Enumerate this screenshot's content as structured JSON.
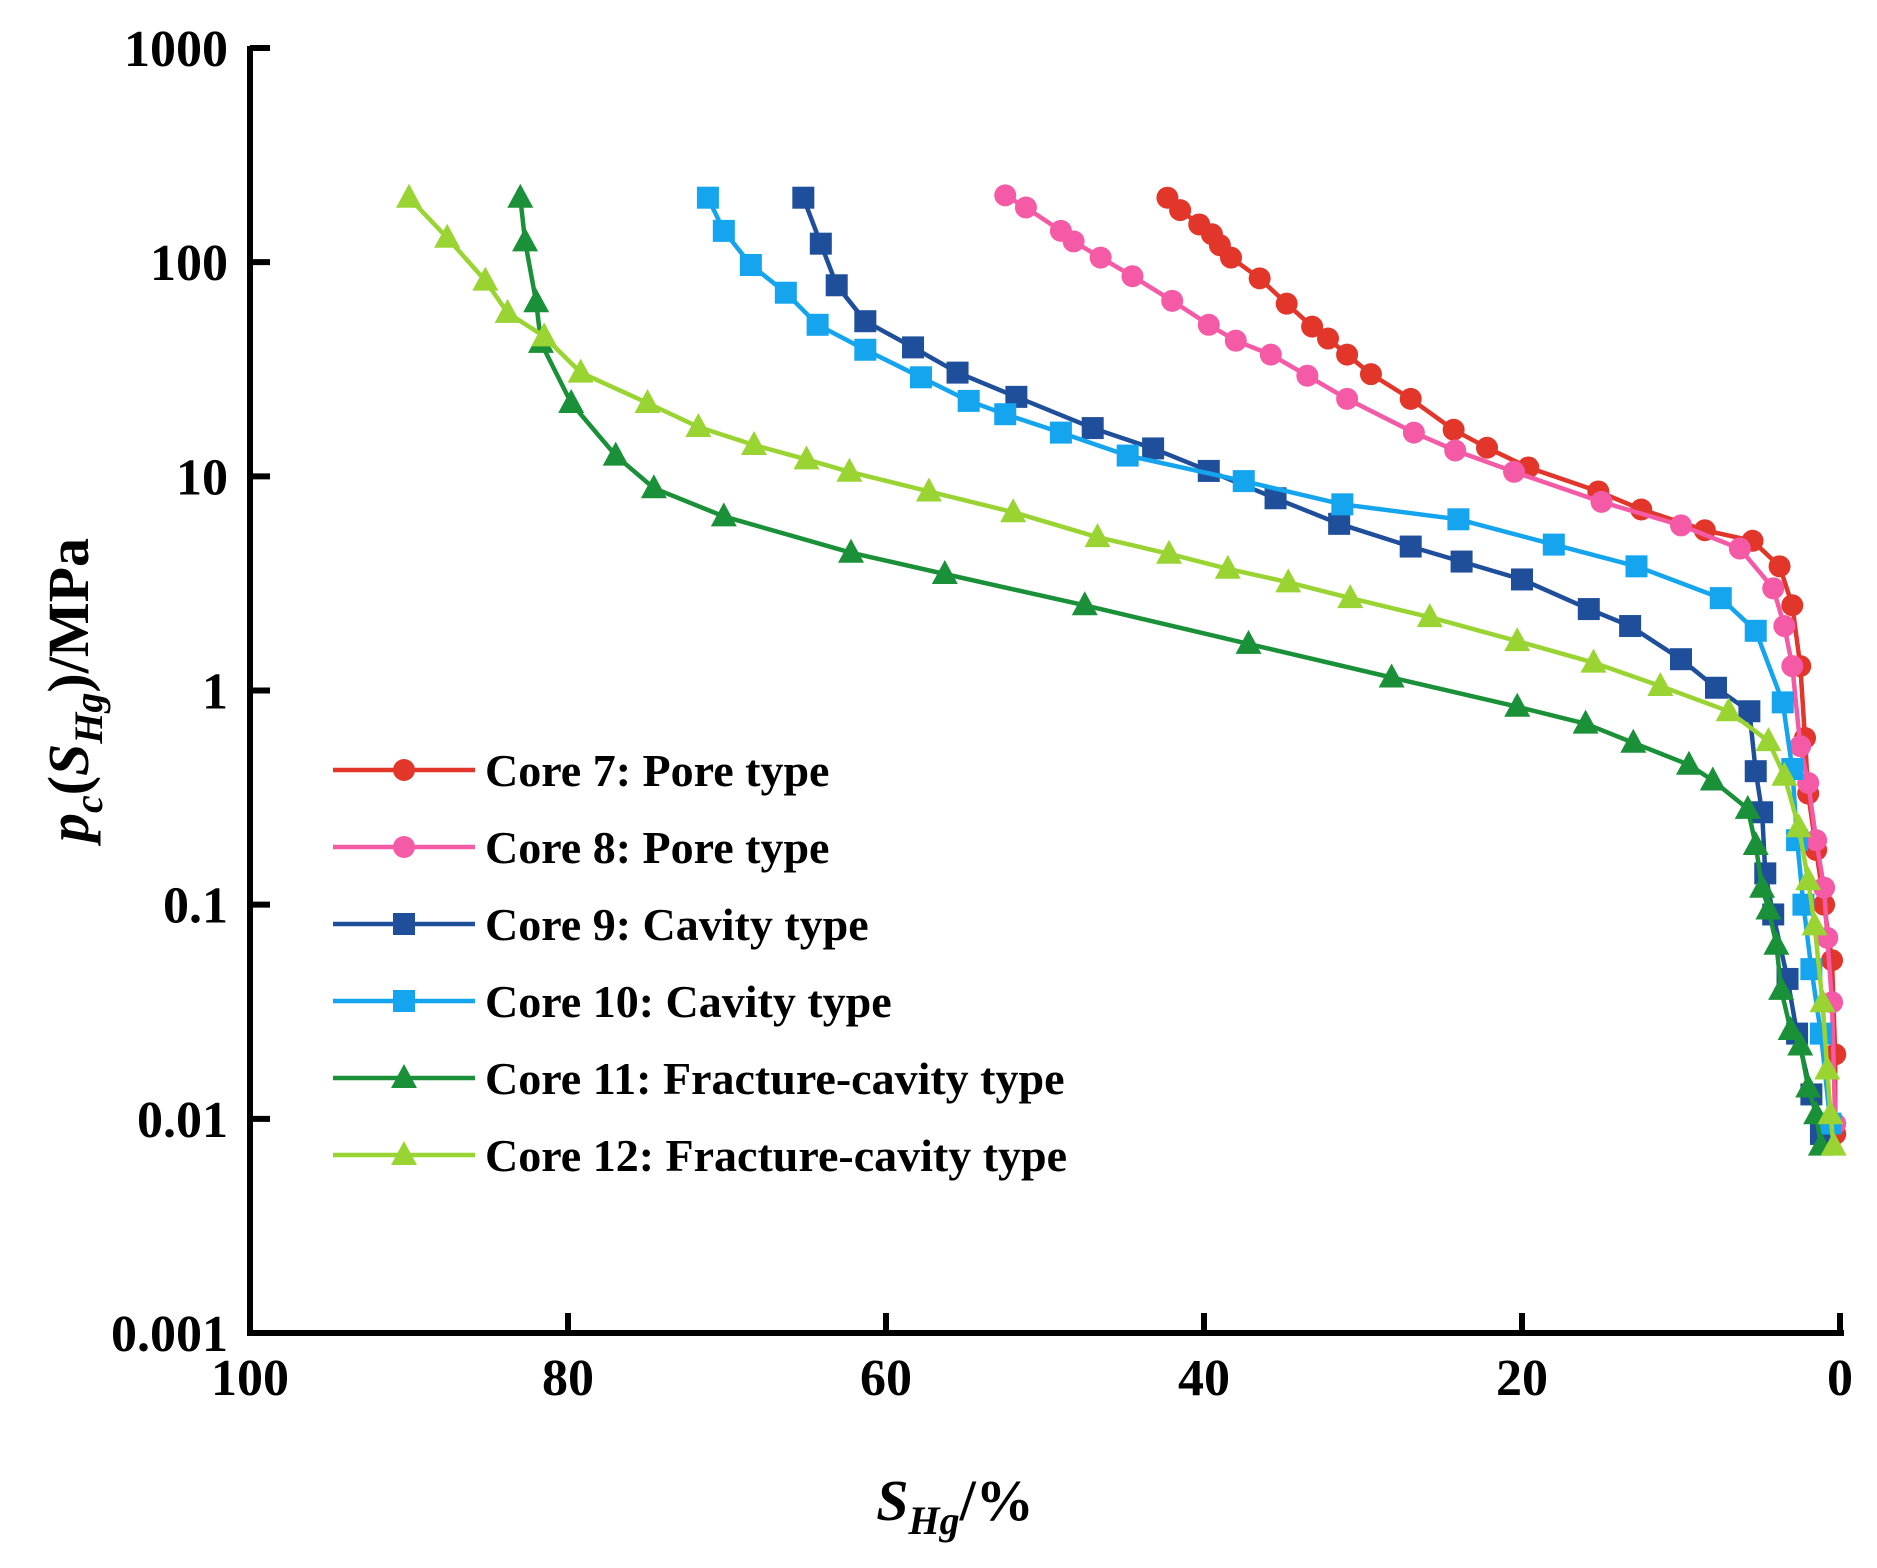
{
  "chart_data": {
    "type": "line",
    "xlabel": {
      "main": "S",
      "sub": "Hg",
      "suffix": "/%"
    },
    "ylabel": {
      "p": "p",
      "c": "c",
      "open": "(",
      "s": "S",
      "hg": "Hg",
      "close": ")",
      "unit": "/MPa"
    },
    "x_reversed": true,
    "xlim": [
      100,
      0
    ],
    "ylim": [
      0.001,
      1000
    ],
    "yscale": "log",
    "x_ticks": [
      {
        "value": 100,
        "label": "100"
      },
      {
        "value": 80,
        "label": "80"
      },
      {
        "value": 60,
        "label": "60"
      },
      {
        "value": 40,
        "label": "40"
      },
      {
        "value": 20,
        "label": "20"
      },
      {
        "value": 0,
        "label": "0"
      }
    ],
    "y_ticks": [
      {
        "value": 1000,
        "label": "1000"
      },
      {
        "value": 100,
        "label": "100"
      },
      {
        "value": 10,
        "label": "10"
      },
      {
        "value": 1,
        "label": "1"
      },
      {
        "value": 0.1,
        "label": "0.1"
      },
      {
        "value": 0.01,
        "label": "0.01"
      },
      {
        "value": 0.001,
        "label": "0.001"
      }
    ],
    "legend_position": "lower-left",
    "series": [
      {
        "name": "Core 7: Pore type",
        "color": "#e2362b",
        "marker": "circle",
        "points": [
          [
            42.3,
            200
          ],
          [
            41.5,
            175
          ],
          [
            40.3,
            150
          ],
          [
            39.5,
            135
          ],
          [
            39.0,
            120
          ],
          [
            38.3,
            105
          ],
          [
            36.5,
            84
          ],
          [
            34.8,
            64
          ],
          [
            33.2,
            50
          ],
          [
            32.2,
            44
          ],
          [
            31.0,
            37
          ],
          [
            29.5,
            30
          ],
          [
            27,
            23
          ],
          [
            24.3,
            16.5
          ],
          [
            22.2,
            13.6
          ],
          [
            19.6,
            11
          ],
          [
            15.2,
            8.5
          ],
          [
            12.5,
            7
          ],
          [
            8.5,
            5.6
          ],
          [
            5.5,
            5
          ],
          [
            3.8,
            3.8
          ],
          [
            3.0,
            2.5
          ],
          [
            2.5,
            1.3
          ],
          [
            2.2,
            0.6
          ],
          [
            2.0,
            0.33
          ],
          [
            1.5,
            0.18
          ],
          [
            1.0,
            0.1
          ],
          [
            0.5,
            0.055
          ],
          [
            0.3,
            0.02
          ],
          [
            0.3,
            0.0085
          ]
        ]
      },
      {
        "name": "Core 8: Pore type",
        "color": "#f45aa6",
        "marker": "circle",
        "points": [
          [
            52.5,
            205
          ],
          [
            51.2,
            180
          ],
          [
            49,
            140
          ],
          [
            48.2,
            125
          ],
          [
            46.5,
            105
          ],
          [
            44.5,
            86
          ],
          [
            42,
            66
          ],
          [
            39.7,
            51
          ],
          [
            38,
            43
          ],
          [
            35.8,
            37
          ],
          [
            33.5,
            29.5
          ],
          [
            31,
            23
          ],
          [
            26.8,
            16
          ],
          [
            24.2,
            13.2
          ],
          [
            20.5,
            10.5
          ],
          [
            15.0,
            7.6
          ],
          [
            10,
            5.9
          ],
          [
            6.3,
            4.6
          ],
          [
            4.2,
            3
          ],
          [
            3.5,
            2
          ],
          [
            3.0,
            1.3
          ],
          [
            2.5,
            0.55
          ],
          [
            2.0,
            0.37
          ],
          [
            1.5,
            0.2
          ],
          [
            1.0,
            0.12
          ],
          [
            0.8,
            0.07
          ],
          [
            0.5,
            0.035
          ],
          [
            0.3,
            0.0095
          ]
        ]
      },
      {
        "name": "Core 9: Cavity type",
        "color": "#1f4f9b",
        "marker": "square",
        "points": [
          [
            65.2,
            200
          ],
          [
            64.1,
            122
          ],
          [
            63.1,
            78
          ],
          [
            61.3,
            53
          ],
          [
            58.3,
            40
          ],
          [
            55.5,
            30.5
          ],
          [
            51.8,
            23.5
          ],
          [
            47,
            16.8
          ],
          [
            43.2,
            13.5
          ],
          [
            39.7,
            10.6
          ],
          [
            35.5,
            7.9
          ],
          [
            31.5,
            6
          ],
          [
            27,
            4.7
          ],
          [
            23.8,
            4
          ],
          [
            20,
            3.3
          ],
          [
            15.8,
            2.4
          ],
          [
            13.2,
            2
          ],
          [
            10,
            1.4
          ],
          [
            7.8,
            1.03
          ],
          [
            5.7,
            0.8
          ],
          [
            5.3,
            0.42
          ],
          [
            4.9,
            0.27
          ],
          [
            4.7,
            0.14
          ],
          [
            4.2,
            0.09
          ],
          [
            3.3,
            0.045
          ],
          [
            2.7,
            0.025
          ],
          [
            1.8,
            0.013
          ],
          [
            1.2,
            0.0085
          ]
        ]
      },
      {
        "name": "Core 10: Cavity type",
        "color": "#14a5ee",
        "marker": "square",
        "points": [
          [
            71.2,
            200
          ],
          [
            70.2,
            140
          ],
          [
            68.5,
            97
          ],
          [
            66.3,
            72
          ],
          [
            64.3,
            51
          ],
          [
            61.3,
            39
          ],
          [
            57.8,
            29
          ],
          [
            54.8,
            22.5
          ],
          [
            52.5,
            19.5
          ],
          [
            49,
            16
          ],
          [
            44.8,
            12.5
          ],
          [
            37.5,
            9.5
          ],
          [
            31.3,
            7.4
          ],
          [
            24,
            6.3
          ],
          [
            18,
            4.8
          ],
          [
            12.8,
            3.8
          ],
          [
            7.5,
            2.7
          ],
          [
            5.3,
            1.9
          ],
          [
            3.6,
            0.88
          ],
          [
            3.0,
            0.43
          ],
          [
            2.7,
            0.2
          ],
          [
            2.3,
            0.1
          ],
          [
            1.8,
            0.05
          ],
          [
            1.2,
            0.025
          ],
          [
            0.6,
            0.0095
          ]
        ]
      },
      {
        "name": "Core 11: Fracture-cavity type",
        "color": "#1a9038",
        "marker": "triangle",
        "points": [
          [
            83,
            200
          ],
          [
            82.7,
            125
          ],
          [
            82,
            65
          ],
          [
            81.7,
            42
          ],
          [
            79.8,
            22
          ],
          [
            77,
            12.5
          ],
          [
            74.6,
            8.8
          ],
          [
            70.2,
            6.5
          ],
          [
            62.2,
            4.4
          ],
          [
            56.3,
            3.5
          ],
          [
            47.5,
            2.5
          ],
          [
            37.2,
            1.65
          ],
          [
            28.2,
            1.15
          ],
          [
            20.3,
            0.84
          ],
          [
            16,
            0.7
          ],
          [
            13,
            0.57
          ],
          [
            9.5,
            0.45
          ],
          [
            8,
            0.38
          ],
          [
            5.8,
            0.28
          ],
          [
            5.3,
            0.19
          ],
          [
            4.9,
            0.12
          ],
          [
            4.5,
            0.095
          ],
          [
            4.0,
            0.065
          ],
          [
            3.7,
            0.04
          ],
          [
            3.1,
            0.026
          ],
          [
            2.5,
            0.022
          ],
          [
            2.0,
            0.014
          ],
          [
            1.5,
            0.0105
          ],
          [
            1.2,
            0.0075
          ]
        ]
      },
      {
        "name": "Core 12: Fracture-cavity type",
        "color": "#99d432",
        "marker": "triangle",
        "points": [
          [
            90,
            200
          ],
          [
            87.6,
            130
          ],
          [
            85.2,
            82
          ],
          [
            83.8,
            58
          ],
          [
            81.5,
            45
          ],
          [
            79.2,
            30.5
          ],
          [
            75,
            22
          ],
          [
            71.8,
            17
          ],
          [
            68.3,
            14
          ],
          [
            65,
            12
          ],
          [
            62.3,
            10.5
          ],
          [
            57.3,
            8.5
          ],
          [
            52,
            6.8
          ],
          [
            46.7,
            5.2
          ],
          [
            42.2,
            4.35
          ],
          [
            38.5,
            3.7
          ],
          [
            34.7,
            3.2
          ],
          [
            30.8,
            2.7
          ],
          [
            25.8,
            2.2
          ],
          [
            20.3,
            1.7
          ],
          [
            15.5,
            1.35
          ],
          [
            11.3,
            1.05
          ],
          [
            7,
            0.8
          ],
          [
            4.5,
            0.58
          ],
          [
            3.5,
            0.4
          ],
          [
            2.6,
            0.23
          ],
          [
            2.0,
            0.13
          ],
          [
            1.6,
            0.08
          ],
          [
            1.1,
            0.035
          ],
          [
            0.8,
            0.017
          ],
          [
            0.6,
            0.0105
          ],
          [
            0.4,
            0.0075
          ]
        ]
      }
    ]
  }
}
